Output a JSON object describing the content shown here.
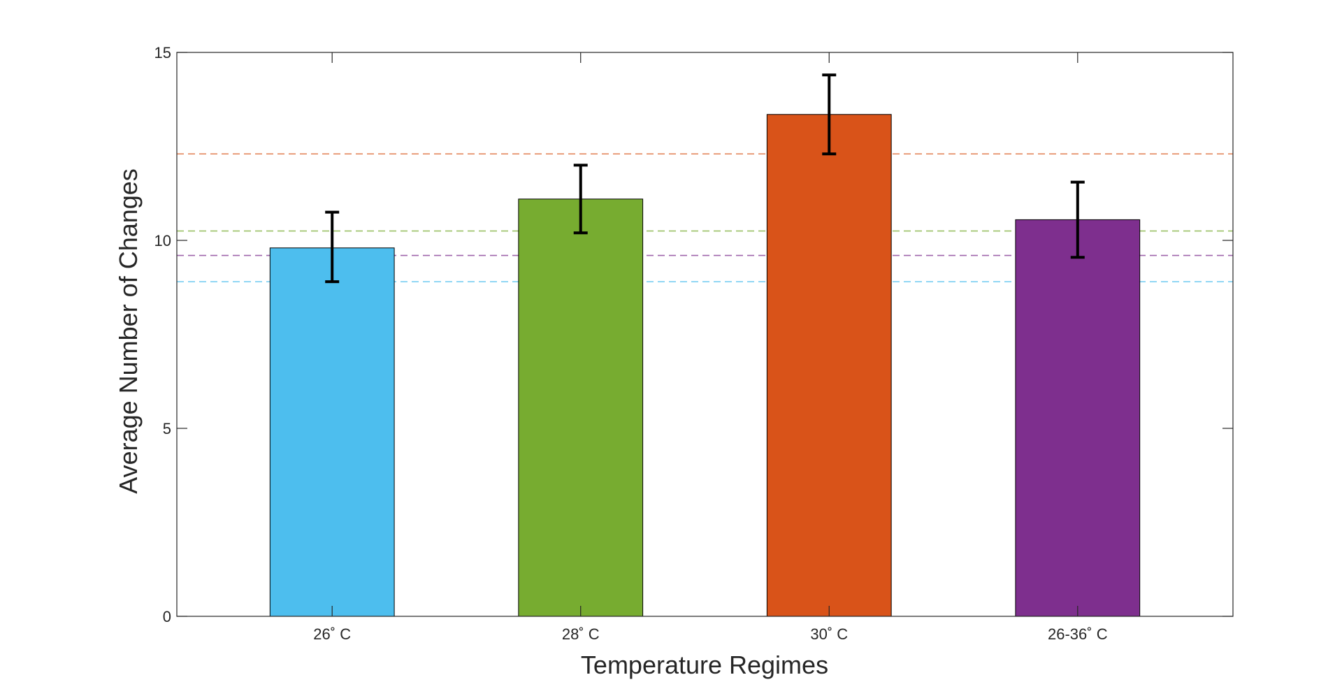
{
  "chart_data": {
    "type": "bar",
    "categories": [
      "26˚ C",
      "28˚ C",
      "30˚ C",
      "26-36˚ C"
    ],
    "values": [
      9.8,
      11.1,
      13.35,
      10.55
    ],
    "errors": [
      {
        "low": 8.9,
        "high": 10.75
      },
      {
        "low": 10.2,
        "high": 12.0
      },
      {
        "low": 12.3,
        "high": 14.4
      },
      {
        "low": 9.55,
        "high": 11.55
      }
    ],
    "colors": [
      "#4DBEEE",
      "#77AC30",
      "#D95319",
      "#7E2F8E"
    ],
    "reference_lines": [
      {
        "value": 8.9,
        "color": "#4DBEEE"
      },
      {
        "value": 10.25,
        "color": "#77AC30"
      },
      {
        "value": 12.3,
        "color": "#D95319"
      },
      {
        "value": 9.6,
        "color": "#7E2F8E"
      }
    ],
    "xlabel": "Temperature Regimes",
    "ylabel": "Average Number of Changes",
    "ylim": [
      0,
      15
    ],
    "yticks": [
      0,
      5,
      10,
      15
    ],
    "ytick_labels": [
      "0",
      "5",
      "10",
      "15"
    ],
    "grid": false,
    "legend": "none"
  }
}
